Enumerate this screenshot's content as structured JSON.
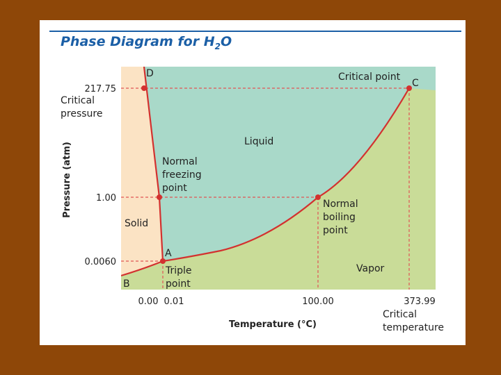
{
  "title": {
    "text": "Phase Diagram for H",
    "sub": "2",
    "tail": "O"
  },
  "axes": {
    "x_title": "Temperature (°C)",
    "y_title": "Pressure (atm)",
    "x_ticks": [
      "0.00",
      "0.01",
      "100.00",
      "373.99"
    ],
    "y_ticks": [
      "217.75",
      "1.00",
      "0.0060"
    ]
  },
  "annotations": {
    "critical_pressure": [
      "Critical",
      "pressure"
    ],
    "critical_temperature": [
      "Critical",
      "temperature"
    ],
    "critical_point": "Critical point",
    "normal_freezing_point": [
      "Normal",
      "freezing",
      "point"
    ],
    "normal_boiling_point": [
      "Normal",
      "boiling",
      "point"
    ],
    "triple_point": [
      "Triple",
      "point"
    ]
  },
  "regions": {
    "solid": "Solid",
    "liquid": "Liquid",
    "vapor": "Vapor"
  },
  "points": {
    "A": "A",
    "B": "B",
    "C": "C",
    "D": "D"
  },
  "colors": {
    "solid": "#fbe3c4",
    "liquid": "#a9d9c9",
    "vapor": "#c9dc98",
    "curve": "#d3312f",
    "guide": "#e05555"
  },
  "chart_data": {
    "type": "phase-diagram",
    "substance": "H2O",
    "x_unit": "°C",
    "y_unit": "atm",
    "points": [
      {
        "id": "A",
        "name": "Triple point",
        "T": 0.01,
        "P": 0.006
      },
      {
        "id": "C",
        "name": "Critical point",
        "T": 373.99,
        "P": 217.75
      },
      {
        "name": "Normal freezing point",
        "T": 0.0,
        "P": 1.0
      },
      {
        "name": "Normal boiling point",
        "T": 100.0,
        "P": 1.0
      }
    ],
    "curves": [
      {
        "name": "solid-liquid",
        "from": "A",
        "to": "D"
      },
      {
        "name": "liquid-vapor",
        "from": "A",
        "to": "C"
      },
      {
        "name": "solid-vapor",
        "from": "B",
        "to": "A"
      }
    ]
  }
}
